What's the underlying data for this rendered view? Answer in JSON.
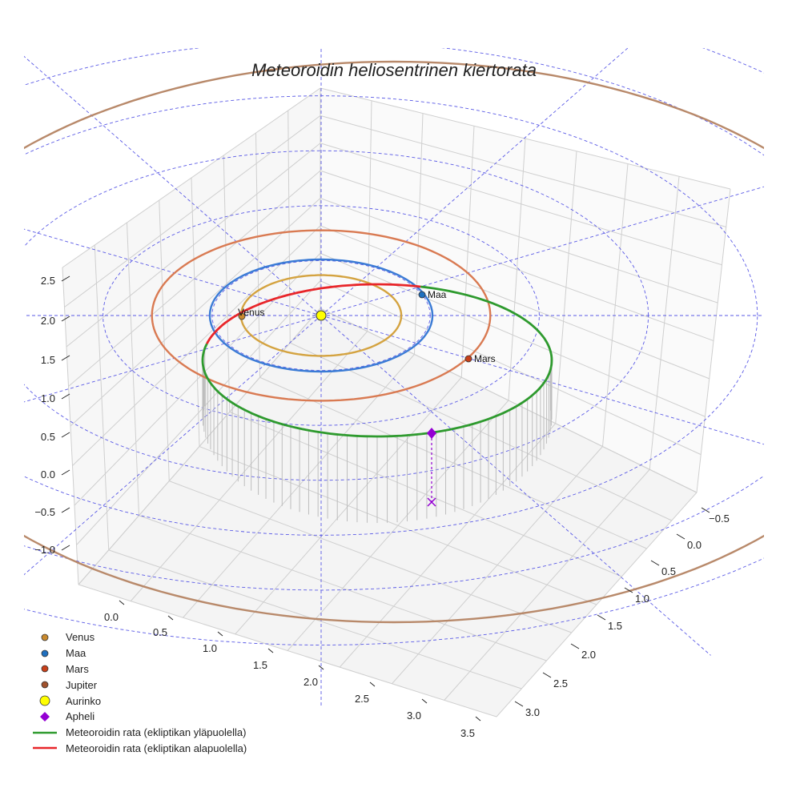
{
  "chart_data": {
    "type": "3d-line",
    "title": "Meteoroidin heliosentrinen kiertorata",
    "xlabel": "",
    "ylabel": "",
    "zlabel": "",
    "x_ticks": [
      "0.0",
      "0.5",
      "1.0",
      "1.5",
      "2.0",
      "2.5",
      "3.0",
      "3.5"
    ],
    "y_ticks": [
      "−0.5",
      "0.0",
      "0.5",
      "1.0",
      "1.5",
      "2.0",
      "2.5",
      "3.0"
    ],
    "z_ticks": [
      "−1.0",
      "−0.5",
      "0.0",
      "0.5",
      "1.0",
      "1.5",
      "2.0",
      "2.5"
    ],
    "xlim": [
      -0.3,
      3.7
    ],
    "ylim": [
      -0.7,
      3.2
    ],
    "zlim": [
      -1.2,
      2.7
    ],
    "planet_orbits": [
      {
        "name": "Venus",
        "radius_au": 0.72,
        "color": "#d4a340"
      },
      {
        "name": "Maa",
        "radius_au": 1.0,
        "color": "#3a7bd5"
      },
      {
        "name": "Mars",
        "radius_au": 1.52,
        "color": "#d97a52"
      },
      {
        "name": "Jupiter",
        "radius_au": 5.2,
        "color": "#b8896a"
      }
    ],
    "planet_positions": [
      {
        "name": "Venus",
        "label": "Venus",
        "color": "#c98a2e"
      },
      {
        "name": "Maa",
        "label": "Maa",
        "color": "#1f6fbf"
      },
      {
        "name": "Mars",
        "label": "Mars",
        "color": "#c8401a"
      }
    ],
    "sun": {
      "name": "Aurinko",
      "color": "#ffff00"
    },
    "meteoroid_orbit": {
      "above_ecliptic": {
        "name": "Meteoroidin rata (ekliptikan yläpuolella)",
        "color": "#2e9a2e"
      },
      "below_ecliptic": {
        "name": "Meteoroidin rata (ekliptikan alapuolella)",
        "color": "#e8262a"
      }
    },
    "aphelion": {
      "name": "Apheli",
      "color": "#9400d3"
    },
    "ecliptic_grid": {
      "circle_radii_au": [
        1,
        2,
        3,
        4,
        5,
        6
      ],
      "spokes": 12,
      "color": "#5a5ae6"
    },
    "legend_position": "bottom-left",
    "grid": true
  },
  "legend": [
    {
      "label": "Venus",
      "kind": "dot",
      "color": "#c98a2e"
    },
    {
      "label": "Maa",
      "kind": "dot",
      "color": "#1f6fbf"
    },
    {
      "label": "Mars",
      "kind": "dot",
      "color": "#c8401a"
    },
    {
      "label": "Jupiter",
      "kind": "dot",
      "color": "#a0522d"
    },
    {
      "label": "Aurinko",
      "kind": "big-dot",
      "color": "#ffff00"
    },
    {
      "label": "Apheli",
      "kind": "diamond",
      "color": "#9400d3"
    },
    {
      "label": "Meteoroidin rata (ekliptikan yläpuolella)",
      "kind": "line",
      "color": "#2e9a2e"
    },
    {
      "label": "Meteoroidin rata (ekliptikan alapuolella)",
      "kind": "line",
      "color": "#e8262a"
    }
  ]
}
